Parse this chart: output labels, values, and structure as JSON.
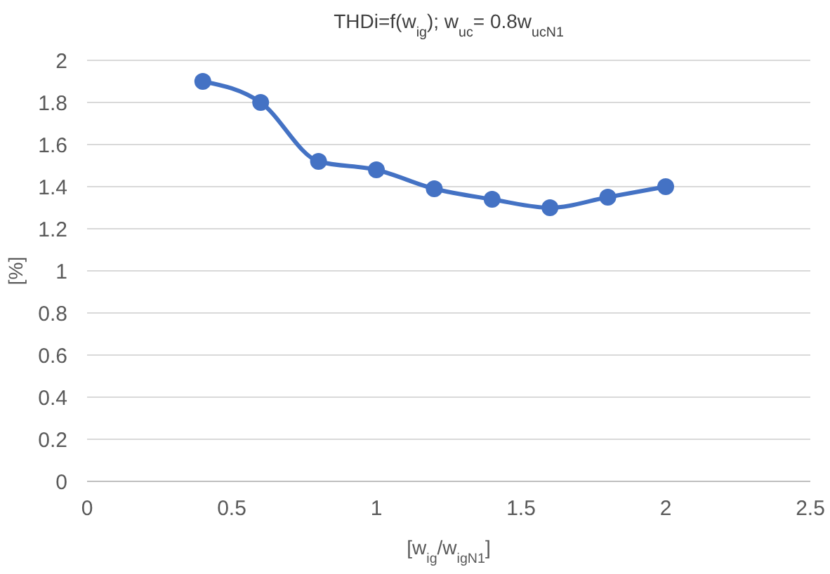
{
  "chart_data": {
    "type": "line",
    "title": "THDi=f(w$_{ig}$); w$_{uc}$= 0.8w$_{ucN1}$",
    "xlabel": "[w$_{ig}$/w$_{igN1}$]",
    "ylabel": "[%]",
    "x": [
      0.4,
      0.6,
      0.8,
      1.0,
      1.2,
      1.4,
      1.6,
      1.8,
      2.0
    ],
    "series": [
      {
        "color": "#4472c4",
        "values": [
          1.9,
          1.8,
          1.52,
          1.48,
          1.39,
          1.34,
          1.3,
          1.35,
          1.4
        ]
      }
    ],
    "xlim": [
      0,
      2.5
    ],
    "xticks": [
      0,
      0.5,
      1,
      1.5,
      2,
      2.5
    ],
    "ylim": [
      0,
      2
    ],
    "yticks": [
      0,
      0.2,
      0.4,
      0.6,
      0.8,
      1,
      1.2,
      1.4,
      1.6,
      1.8,
      2
    ],
    "grid": "y",
    "marker": "circle",
    "line_style": "solid"
  }
}
